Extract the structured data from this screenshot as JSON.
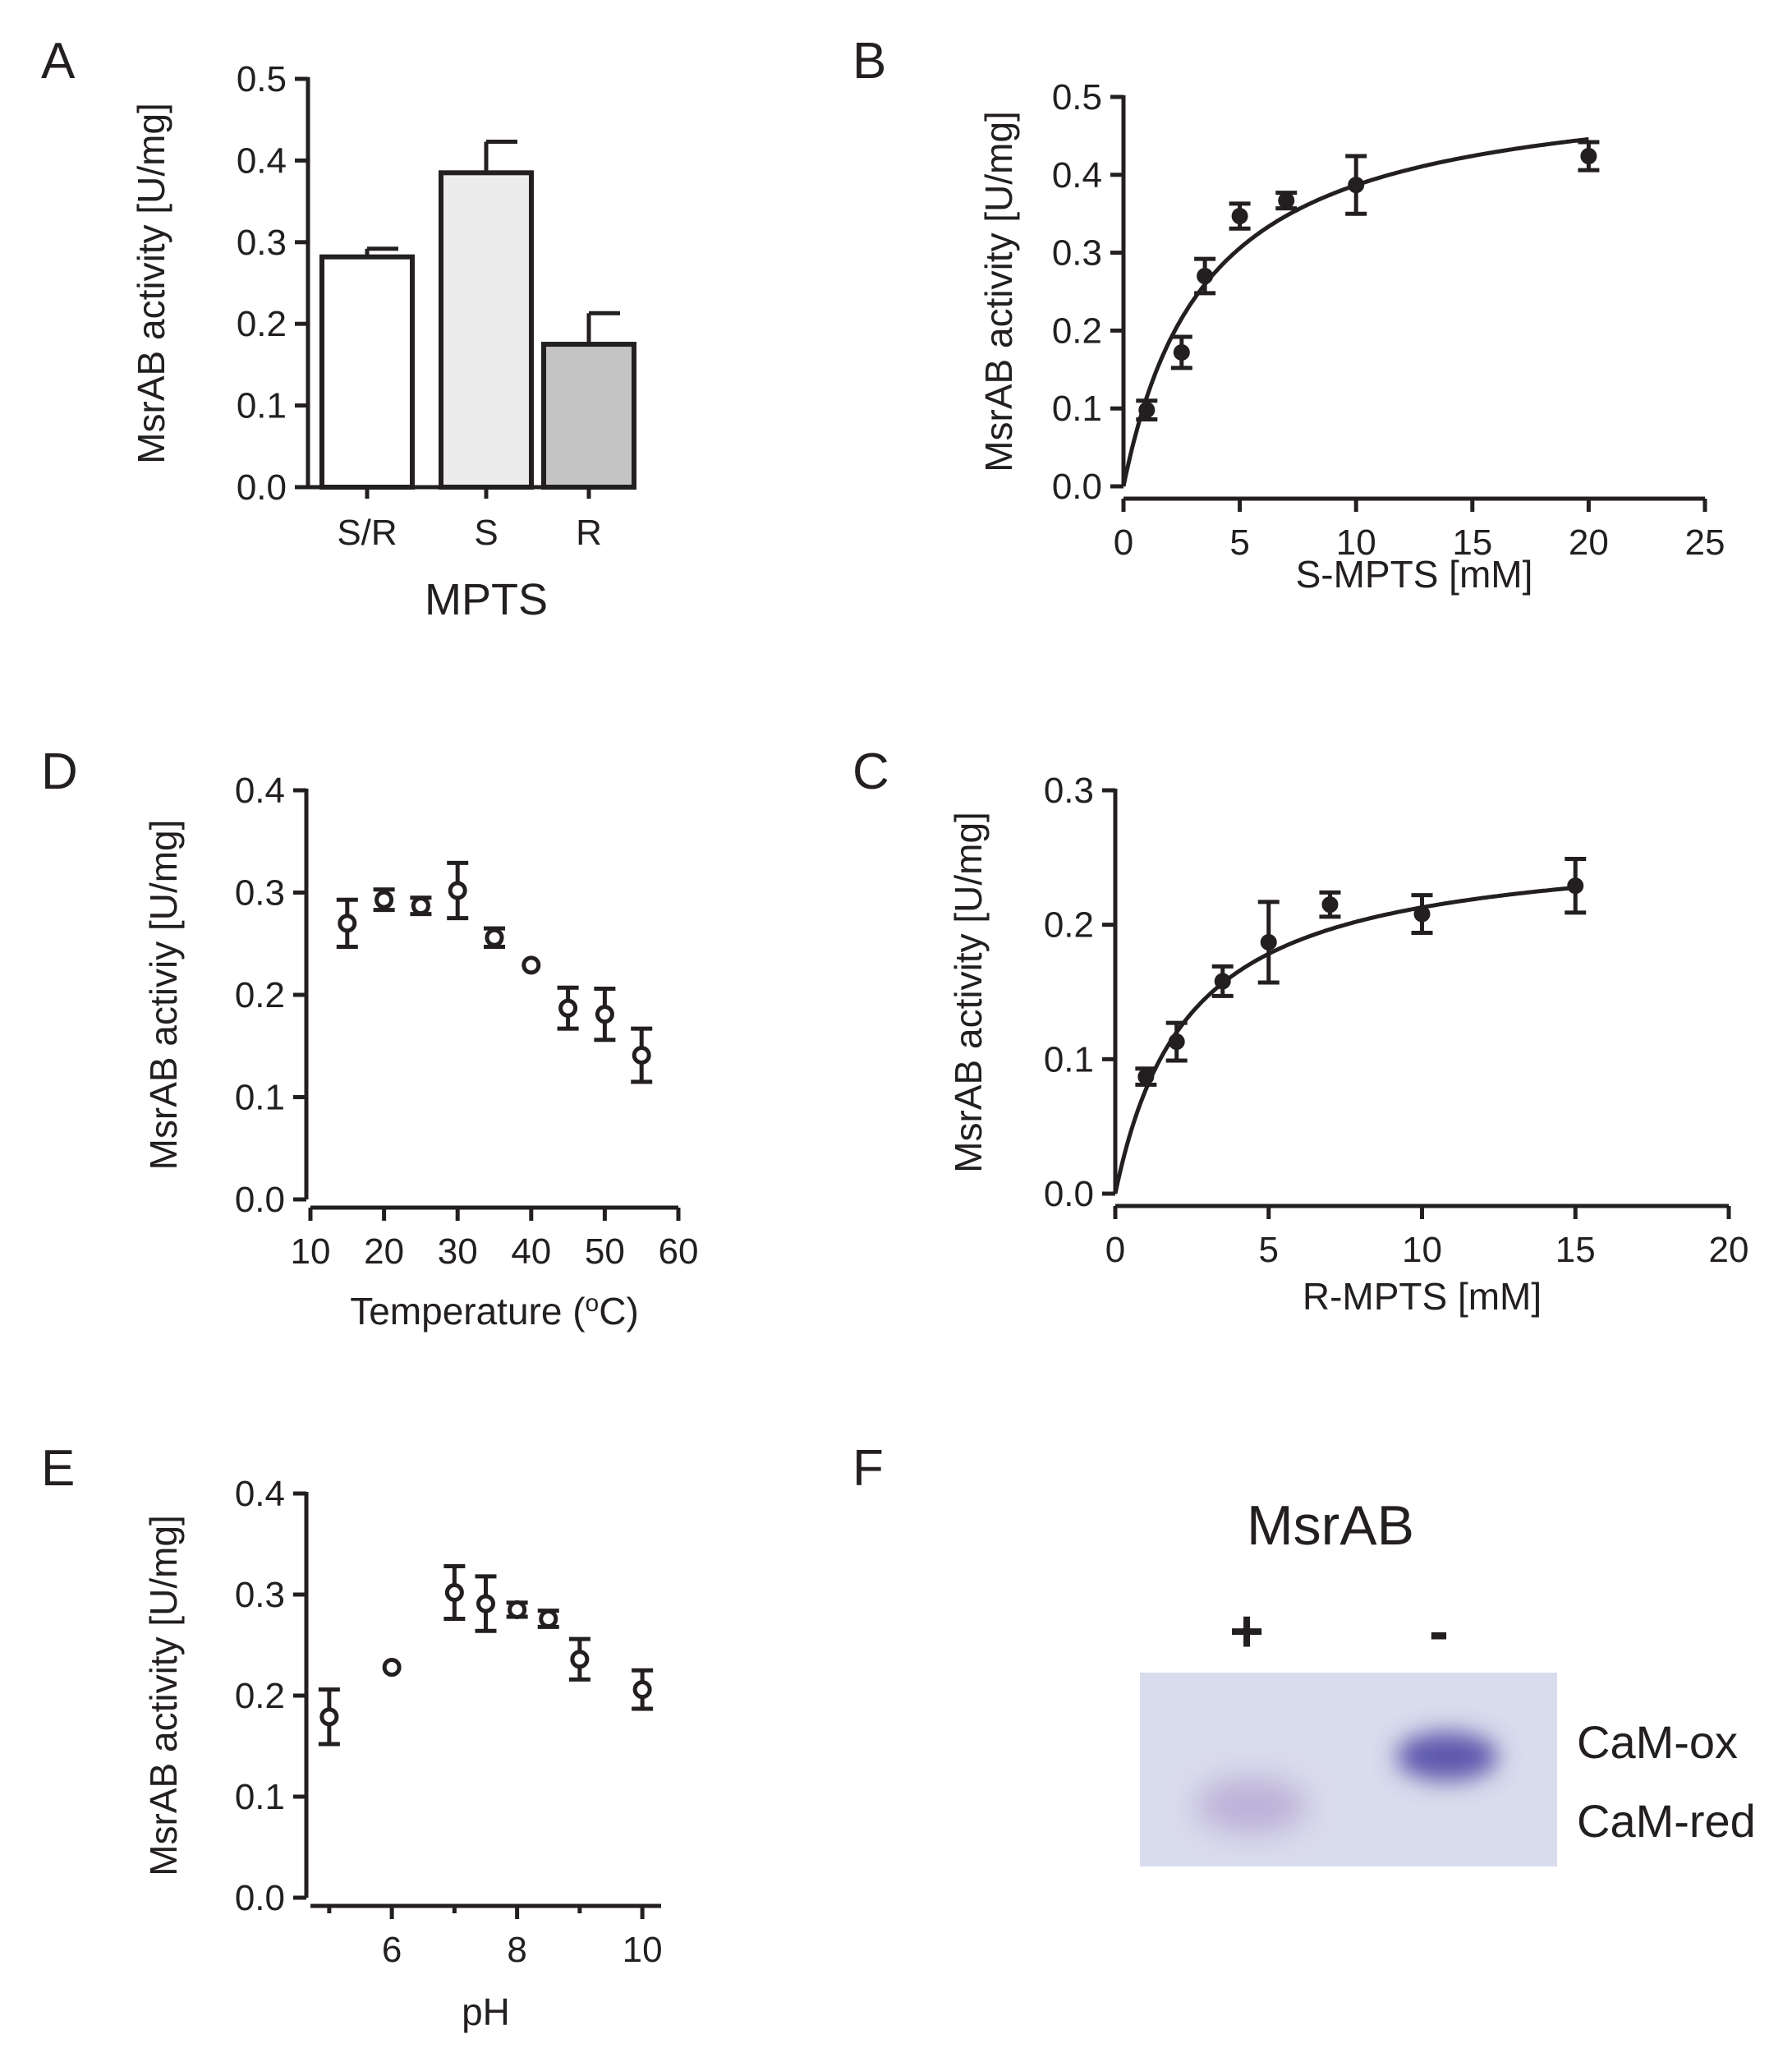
{
  "chart_data": [
    {
      "panel": "A",
      "type": "bar",
      "categories": [
        "S/R",
        "S",
        "R"
      ],
      "values": [
        0.282,
        0.385,
        0.175
      ],
      "errors": [
        0.01,
        0.038,
        0.038
      ],
      "bar_colors": [
        "#ffffff",
        "#ececec",
        "#c4c4c4"
      ],
      "title": "",
      "xlabel": "MPTS",
      "ylabel": "MsrAB activity [U/mg]",
      "ylim": [
        0,
        0.5
      ],
      "yticks": [
        "0.0",
        "0.1",
        "0.2",
        "0.3",
        "0.4",
        "0.5"
      ]
    },
    {
      "panel": "B",
      "type": "scatter",
      "marker": "filled",
      "x": [
        1,
        2.5,
        3.5,
        5,
        7,
        10,
        20
      ],
      "y": [
        0.098,
        0.172,
        0.27,
        0.347,
        0.367,
        0.387,
        0.424
      ],
      "errors": [
        0.012,
        0.02,
        0.022,
        0.016,
        0.01,
        0.037,
        0.018
      ],
      "fit": {
        "model": "michaelis-menten",
        "vmax": 0.526,
        "km": 3.6
      },
      "xlabel": "S-MPTS [mM]",
      "ylabel": "MsrAB activity [U/mg]",
      "xlim": [
        0,
        25
      ],
      "ylim": [
        0,
        0.5
      ],
      "xticks": [
        "0",
        "5",
        "10",
        "15",
        "20",
        "25"
      ],
      "yticks": [
        "0.0",
        "0.1",
        "0.2",
        "0.3",
        "0.4",
        "0.5"
      ]
    },
    {
      "panel": "D",
      "type": "scatter",
      "marker": "open",
      "x": [
        15,
        20,
        25,
        30,
        35,
        40,
        45,
        50,
        55
      ],
      "y": [
        0.27,
        0.293,
        0.287,
        0.302,
        0.256,
        0.229,
        0.187,
        0.181,
        0.141
      ],
      "errors": [
        0.023,
        0.01,
        0.008,
        0.027,
        0.009,
        0,
        0.02,
        0.025,
        0.026
      ],
      "xlabel": "Temperature (oC)",
      "ylabel": "MsrAB activiy [U/mg]",
      "xlim": [
        10,
        60
      ],
      "ylim": [
        0,
        0.4
      ],
      "xticks": [
        "10",
        "20",
        "30",
        "40",
        "50",
        "60"
      ],
      "yticks": [
        "0.0",
        "0.1",
        "0.2",
        "0.3",
        "0.4"
      ]
    },
    {
      "panel": "C",
      "type": "scatter",
      "marker": "filled",
      "x": [
        1,
        2,
        3.5,
        5,
        7,
        10,
        15
      ],
      "y": [
        0.087,
        0.113,
        0.158,
        0.187,
        0.215,
        0.208,
        0.229
      ],
      "errors": [
        0.006,
        0.014,
        0.011,
        0.03,
        0.009,
        0.014,
        0.02
      ],
      "fit": {
        "model": "michaelis-menten",
        "vmax": 0.264,
        "km": 2.4
      },
      "xlabel": "R-MPTS [mM]",
      "ylabel": "MsrAB activity [U/mg]",
      "xlim": [
        0,
        20
      ],
      "ylim": [
        0,
        0.3
      ],
      "xticks": [
        "0",
        "5",
        "10",
        "15",
        "20"
      ],
      "yticks": [
        "0.0",
        "0.1",
        "0.2",
        "0.3"
      ]
    },
    {
      "panel": "E",
      "type": "scatter",
      "marker": "open",
      "x": [
        5,
        6,
        7,
        7.5,
        8,
        8.5,
        9,
        10
      ],
      "y": [
        0.179,
        0.228,
        0.302,
        0.291,
        0.285,
        0.276,
        0.236,
        0.206
      ],
      "errors": [
        0.027,
        0,
        0.026,
        0.027,
        0.007,
        0.008,
        0.02,
        0.019
      ],
      "xlabel": "pH",
      "ylabel": "MsrAB activity [U/mg]",
      "xlim": [
        4.7,
        10.3
      ],
      "ylim": [
        0,
        0.4
      ],
      "xtick_values": [
        6,
        8,
        10
      ],
      "xticks": [
        "6",
        "8",
        "10"
      ],
      "yticks": [
        "0.0",
        "0.1",
        "0.2",
        "0.3",
        "0.4"
      ]
    }
  ],
  "panel_labels": [
    "A",
    "B",
    "D",
    "C",
    "E",
    "F"
  ],
  "gel": {
    "title": "MsrAB",
    "lane_plus": "+",
    "lane_minus": "-",
    "band_upper": "CaM-ox",
    "band_lower": "CaM-red",
    "background_color": "#d9dcec",
    "band_ox_color": "#5d58ad",
    "band_red_color": "#b8a9d4"
  }
}
